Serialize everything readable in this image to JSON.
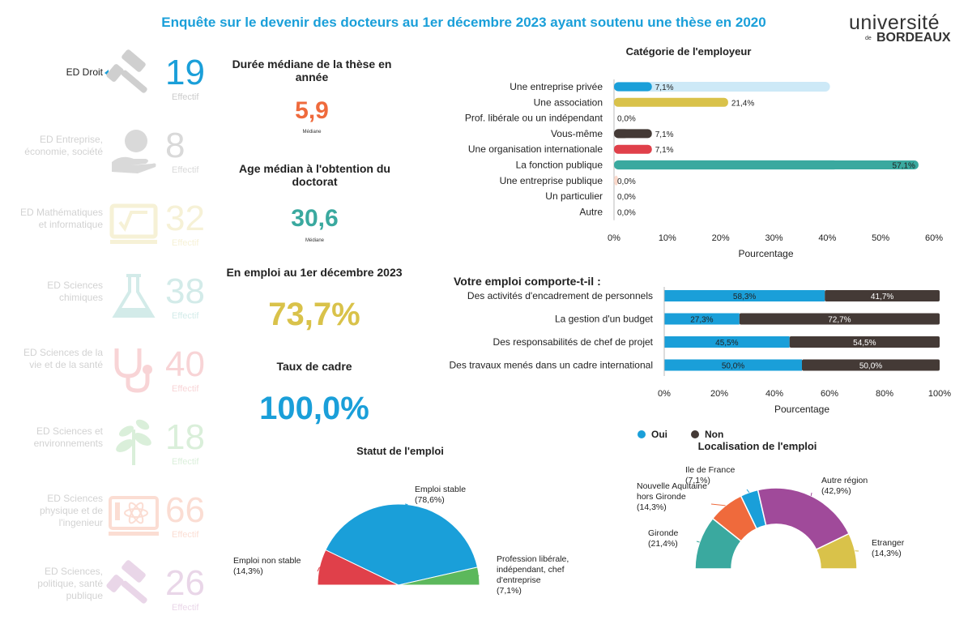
{
  "header": {
    "title": "Enquête sur le devenir des docteurs au 1er décembre 2023 ayant soutenu une thèse en 2020",
    "logo_line1": "université",
    "logo_line2": "de",
    "logo_line3": "BORDEAUX"
  },
  "sidebar": {
    "effectif_label": "Effectif",
    "items": [
      {
        "label": "ED Droit",
        "count": "19",
        "color": "#1a9fd9",
        "icon": "gavel-icon",
        "selected": true
      },
      {
        "label": "ED Entreprise, économie, société",
        "count": "8",
        "color": "#555555",
        "icon": "money-hand-icon"
      },
      {
        "label": "ED Mathématiques et informatique",
        "count": "32",
        "color": "#d9c24a",
        "icon": "sqrt-board-icon"
      },
      {
        "label": "ED Sciences chimiques",
        "count": "38",
        "color": "#3aa99f",
        "icon": "flask-icon"
      },
      {
        "label": "ED Sciences de la vie et de la santé",
        "count": "40",
        "color": "#e0404a",
        "icon": "stethoscope-icon"
      },
      {
        "label": "ED Sciences et environnements",
        "count": "18",
        "color": "#5cb85c",
        "icon": "plant-icon"
      },
      {
        "label": "ED Sciences physique et de l'ingenieur",
        "count": "66",
        "color": "#ef6a3c",
        "icon": "atom-icon"
      },
      {
        "label": "ED Sciences, politique, santé publique",
        "count": "26",
        "color": "#a04a9a",
        "icon": "gavel-icon"
      }
    ]
  },
  "kpis": {
    "duree_title": "Durée médiane de la thèse en année",
    "duree_value": "5,9",
    "duree_sub": "Médiane",
    "age_title": "Age médian à l'obtention du doctorat",
    "age_value": "30,6",
    "age_sub": "Médiane",
    "emploi_title": "En emploi au 1er décembre 2023",
    "emploi_value": "73,7%",
    "cadre_title": "Taux de cadre",
    "cadre_value": "100,0%",
    "colors": {
      "duree": "#ef6a3c",
      "age": "#3aa99f",
      "emploi": "#d9c24a",
      "cadre": "#1a9fd9"
    }
  },
  "chart_data": [
    {
      "type": "bar",
      "title": "Catégorie de l'employeur",
      "xlabel": "Pourcentage",
      "xlim": [
        0,
        60
      ],
      "ticks": [
        "0%",
        "10%",
        "20%",
        "30%",
        "40%",
        "50%",
        "60%"
      ],
      "categories": [
        "Une entreprise privée",
        "Une association",
        "Prof. libérale ou un indépendant",
        "Vous-même",
        "Une organisation internationale",
        "La fonction publique",
        "Une entreprise publique",
        "Un particulier",
        "Autre"
      ],
      "values": [
        7.1,
        21.4,
        0.0,
        7.1,
        7.1,
        57.1,
        0.0,
        0.0,
        0.0
      ],
      "labels": [
        "7,1%",
        "21,4%",
        "0,0%",
        "7,1%",
        "7,1%",
        "57,1%",
        "0,0%",
        "0,0%",
        "0,0%"
      ],
      "background_values": [
        40.5,
        0,
        0,
        2.8,
        0,
        42,
        0.8,
        0,
        0
      ],
      "colors": [
        "#1a9fd9",
        "#d9c24a",
        "#ef6a3c",
        "#443a36",
        "#e0404a",
        "#3aa99f",
        "#ef6a3c",
        "#443a36",
        "#443a36"
      ],
      "background_colors": [
        "#cde9f7",
        "#f3eec2",
        "#fbd9cb",
        "#d9d7d6",
        "#f7cccf",
        "#c5e9e5",
        "#fbd9cb",
        "#d9d7d6",
        "#d9d7d6"
      ]
    },
    {
      "type": "bar",
      "title": "Votre emploi comporte-t-il :",
      "xlabel": "Pourcentage",
      "xlim": [
        0,
        100
      ],
      "ticks": [
        "0%",
        "20%",
        "40%",
        "60%",
        "80%",
        "100%"
      ],
      "categories": [
        "Des activités d'encadrement de personnels",
        "La gestion d'un budget",
        "Des responsabilités de chef de projet",
        "Des travaux menés dans un cadre international"
      ],
      "series": [
        {
          "name": "Oui",
          "values": [
            58.3,
            27.3,
            45.5,
            50.0
          ],
          "labels": [
            "58,3%",
            "27,3%",
            "45,5%",
            "50,0%"
          ],
          "color": "#1a9fd9"
        },
        {
          "name": "Non",
          "values": [
            41.7,
            72.7,
            54.5,
            50.0
          ],
          "labels": [
            "41,7%",
            "72,7%",
            "54,5%",
            "50,0%"
          ],
          "color": "#443a36"
        }
      ],
      "legend": "bottom-left"
    },
    {
      "type": "pie",
      "title": "Statut de l'emploi",
      "slices": [
        {
          "name": "Emploi non stable",
          "value": 14.3,
          "label": "(14,3%)",
          "color": "#e0404a"
        },
        {
          "name": "Emploi stable",
          "value": 78.6,
          "label": "(78,6%)",
          "color": "#1a9fd9"
        },
        {
          "name": "Profession libérale, indépendant, chef d'entreprise",
          "value": 7.1,
          "label": "(7,1%)",
          "color": "#5cb85c"
        }
      ]
    },
    {
      "type": "pie",
      "title": "Localisation de l'emploi",
      "slices": [
        {
          "name": "Gironde",
          "value": 21.4,
          "label": "(21,4%)",
          "color": "#3aa99f"
        },
        {
          "name": "Nouvelle Aquitaine hors Gironde",
          "value": 14.3,
          "label": "(14,3%)",
          "color": "#ef6a3c"
        },
        {
          "name": "Ile de France",
          "value": 7.1,
          "label": "(7,1%)",
          "color": "#1a9fd9"
        },
        {
          "name": "Autre région",
          "value": 42.9,
          "label": "(42,9%)",
          "color": "#a04a9a"
        },
        {
          "name": "Etranger",
          "value": 14.3,
          "label": "(14,3%)",
          "color": "#d9c24a"
        }
      ]
    }
  ]
}
